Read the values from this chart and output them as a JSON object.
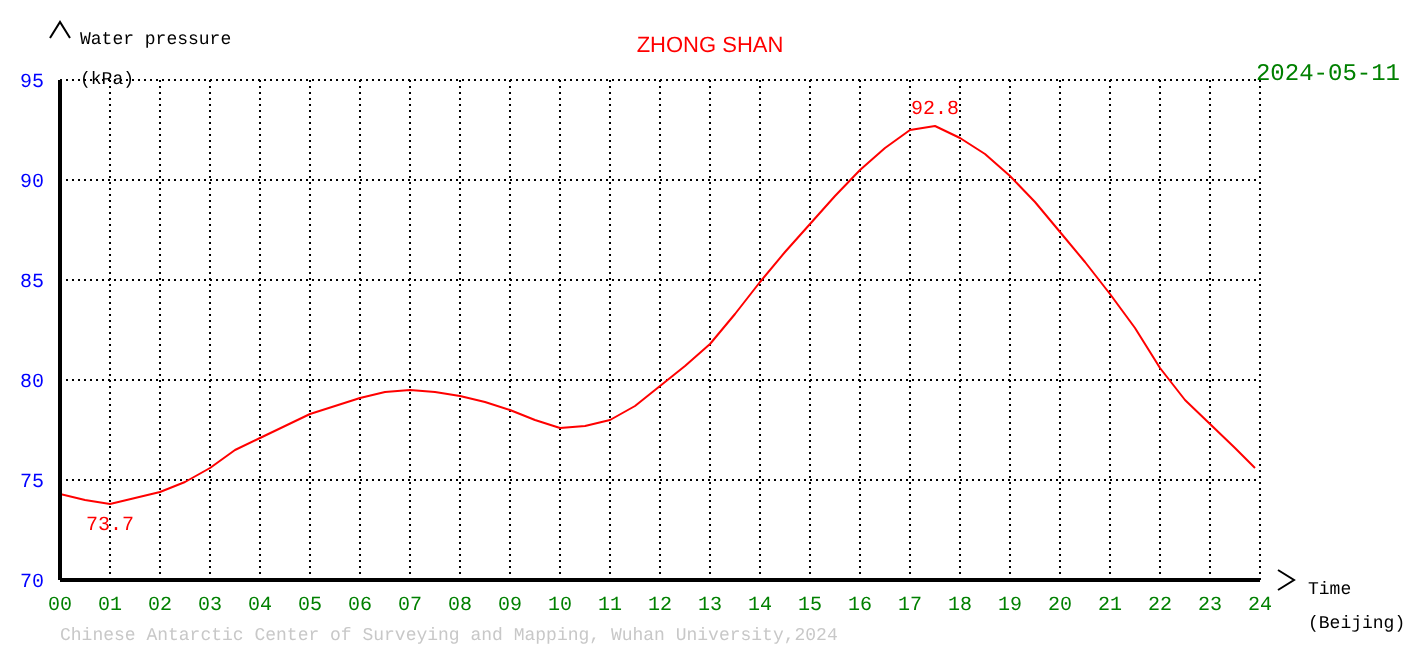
{
  "chart_data": {
    "type": "line",
    "title": "ZHONG SHAN",
    "subtitle": "2024-05-11",
    "xlabel": "Time\n(Beijing)",
    "ylabel": "Water pressure\n(kPa)",
    "annotations": [
      {
        "text": "92.8",
        "x": 17.5,
        "y": 92.8
      },
      {
        "text": "73.7",
        "x": 1,
        "y": 73.7
      },
      "Chinese Antarctic Center of Surveying and Mapping, Wuhan University,2024"
    ],
    "x": [
      0,
      0.5,
      1,
      1.5,
      2,
      2.5,
      3,
      3.5,
      4,
      4.5,
      5,
      5.5,
      6,
      6.5,
      7,
      7.5,
      8,
      8.5,
      9,
      9.5,
      10,
      10.5,
      11,
      11.5,
      12,
      12.5,
      13,
      13.5,
      14,
      14.5,
      15,
      15.5,
      16,
      16.5,
      17,
      17.5,
      18,
      18.5,
      19,
      19.5,
      20,
      20.5,
      21,
      21.5,
      22,
      22.5,
      23,
      23.5,
      23.9
    ],
    "series": [
      {
        "color": "#ff0000",
        "values": [
          74.3,
          74.0,
          73.8,
          74.1,
          74.4,
          74.9,
          75.6,
          76.5,
          77.1,
          77.7,
          78.3,
          78.7,
          79.1,
          79.4,
          79.5,
          79.4,
          79.2,
          78.9,
          78.5,
          78.0,
          77.6,
          77.7,
          78.0,
          78.7,
          79.7,
          80.7,
          81.8,
          83.3,
          84.9,
          86.4,
          87.8,
          89.2,
          90.5,
          91.6,
          92.5,
          92.7,
          92.1,
          91.3,
          90.2,
          88.9,
          87.4,
          85.9,
          84.3,
          82.6,
          80.6,
          79.0,
          77.8,
          76.6,
          75.6
        ]
      }
    ],
    "xlim": [
      0,
      24
    ],
    "xticks": [
      {
        "value": 0,
        "label": "00"
      },
      {
        "value": 1,
        "label": "01"
      },
      {
        "value": 2,
        "label": "02"
      },
      {
        "value": 3,
        "label": "03"
      },
      {
        "value": 4,
        "label": "04"
      },
      {
        "value": 5,
        "label": "05"
      },
      {
        "value": 6,
        "label": "06"
      },
      {
        "value": 7,
        "label": "07"
      },
      {
        "value": 8,
        "label": "08"
      },
      {
        "value": 9,
        "label": "09"
      },
      {
        "value": 10,
        "label": "10"
      },
      {
        "value": 11,
        "label": "11"
      },
      {
        "value": 12,
        "label": "12"
      },
      {
        "value": 13,
        "label": "13"
      },
      {
        "value": 14,
        "label": "14"
      },
      {
        "value": 15,
        "label": "15"
      },
      {
        "value": 16,
        "label": "16"
      },
      {
        "value": 17,
        "label": "17"
      },
      {
        "value": 18,
        "label": "18"
      },
      {
        "value": 19,
        "label": "19"
      },
      {
        "value": 20,
        "label": "20"
      },
      {
        "value": 21,
        "label": "21"
      },
      {
        "value": 22,
        "label": "22"
      },
      {
        "value": 23,
        "label": "23"
      },
      {
        "value": 24,
        "label": "24"
      }
    ],
    "ylim": [
      70,
      95
    ],
    "yticks": [
      70,
      75,
      80,
      85,
      90,
      95
    ],
    "grid": true,
    "marker": "none",
    "line_style": "solid",
    "legend": false
  }
}
